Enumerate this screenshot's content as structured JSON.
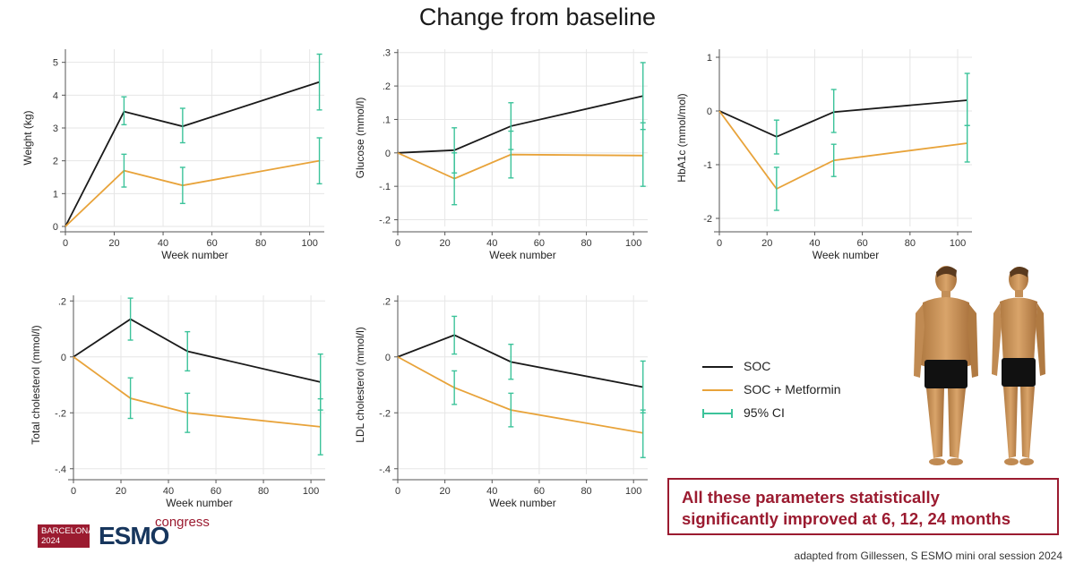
{
  "slide": {
    "title": "Change from baseline",
    "callout_line1": "All these parameters statistically",
    "callout_line2": "significantly improved at 6, 12, 24 months",
    "source": "adapted from Gillessen, S ESMO mini oral session 2024",
    "logo_city_line1": "BARCELONA",
    "logo_city_line2": "2024",
    "logo_mark": "ESMO",
    "logo_congress": "congress"
  },
  "legend": [
    {
      "label": "SOC",
      "kind": "line",
      "color": "#1a1a1a"
    },
    {
      "label": "SOC + Metformin",
      "kind": "line",
      "color": "#e8a33a"
    },
    {
      "label": "95% CI",
      "kind": "ci",
      "color": "#3cc39a"
    }
  ],
  "colors": {
    "soc": "#1a1a1a",
    "metformin": "#e8a33a",
    "ci": "#3cc39a",
    "grid": "#e6e6e6",
    "axis": "#555555"
  },
  "chart_data": [
    {
      "type": "line",
      "ylabel": "Weight (kg)",
      "xlabel": "Week number",
      "x": [
        0,
        24,
        48,
        104
      ],
      "xlim": [
        0,
        106
      ],
      "ylim": [
        0,
        5.4
      ],
      "xticks": [
        0,
        20,
        40,
        60,
        80,
        100
      ],
      "xtick_labels": [
        "0",
        "20",
        "40",
        "60",
        "80",
        "100"
      ],
      "yticks": [
        0,
        1,
        2,
        3,
        4,
        5
      ],
      "ytick_labels": [
        "0",
        "1",
        "2",
        "3",
        "4",
        "5"
      ],
      "series": [
        {
          "name": "SOC",
          "values": [
            0,
            3.5,
            3.05,
            4.4
          ],
          "ci": [
            [
              0,
              0
            ],
            [
              3.1,
              3.95
            ],
            [
              2.55,
              3.6
            ],
            [
              3.55,
              5.25
            ]
          ]
        },
        {
          "name": "SOC + Metformin",
          "values": [
            0,
            1.7,
            1.25,
            2.0
          ],
          "ci": [
            [
              0,
              0
            ],
            [
              1.2,
              2.2
            ],
            [
              0.7,
              1.8
            ],
            [
              1.3,
              2.7
            ]
          ]
        }
      ]
    },
    {
      "type": "line",
      "ylabel": "Glucose (mmol/l)",
      "xlabel": "Week number",
      "x": [
        0,
        24,
        48,
        104
      ],
      "xlim": [
        0,
        106
      ],
      "ylim": [
        -0.22,
        0.31
      ],
      "xticks": [
        0,
        20,
        40,
        60,
        80,
        100
      ],
      "xtick_labels": [
        "0",
        "20",
        "40",
        "60",
        "80",
        "100"
      ],
      "yticks": [
        -0.2,
        -0.1,
        0,
        0.1,
        0.2,
        0.3
      ],
      "ytick_labels": [
        "-.2",
        "-.1",
        "0",
        ".1",
        ".2",
        ".3"
      ],
      "series": [
        {
          "name": "SOC",
          "values": [
            0,
            0.008,
            0.08,
            0.17
          ],
          "ci": [
            [
              0,
              0
            ],
            [
              -0.06,
              0.075
            ],
            [
              0.01,
              0.15
            ],
            [
              0.07,
              0.27
            ]
          ]
        },
        {
          "name": "SOC + Metformin",
          "values": [
            0,
            -0.077,
            -0.005,
            -0.008
          ],
          "ci": [
            [
              0,
              0
            ],
            [
              -0.155,
              0.0
            ],
            [
              -0.075,
              0.065
            ],
            [
              -0.1,
              0.09
            ]
          ]
        }
      ]
    },
    {
      "type": "line",
      "ylabel": "HbA1c (mmol/mol)",
      "xlabel": "Week number",
      "x": [
        0,
        24,
        48,
        104
      ],
      "xlim": [
        0,
        106
      ],
      "ylim": [
        -2.15,
        1.15
      ],
      "xticks": [
        0,
        20,
        40,
        60,
        80,
        100
      ],
      "xtick_labels": [
        "0",
        "20",
        "40",
        "60",
        "80",
        "100"
      ],
      "yticks": [
        -2,
        -1,
        0,
        1
      ],
      "ytick_labels": [
        "-2",
        "-1",
        "0",
        "1"
      ],
      "series": [
        {
          "name": "SOC",
          "values": [
            0,
            -0.48,
            -0.02,
            0.2
          ],
          "ci": [
            [
              0,
              0
            ],
            [
              -0.8,
              -0.17
            ],
            [
              -0.4,
              0.4
            ],
            [
              -0.27,
              0.7
            ]
          ]
        },
        {
          "name": "SOC + Metformin",
          "values": [
            0,
            -1.45,
            -0.92,
            -0.6
          ],
          "ci": [
            [
              0,
              0
            ],
            [
              -1.85,
              -1.05
            ],
            [
              -1.22,
              -0.62
            ],
            [
              -0.95,
              -0.27
            ]
          ]
        }
      ]
    },
    {
      "type": "line",
      "ylabel": "Total cholesterol (mmol/l)",
      "xlabel": "Week number",
      "x": [
        0,
        24,
        48,
        104
      ],
      "xlim": [
        0,
        106
      ],
      "ylim": [
        -0.42,
        0.22
      ],
      "xticks": [
        0,
        20,
        40,
        60,
        80,
        100
      ],
      "xtick_labels": [
        "0",
        "20",
        "40",
        "60",
        "80",
        "100"
      ],
      "yticks": [
        -0.4,
        -0.2,
        0,
        0.2
      ],
      "ytick_labels": [
        "-.4",
        "-.2",
        "0",
        ".2"
      ],
      "series": [
        {
          "name": "SOC",
          "values": [
            0,
            0.135,
            0.02,
            -0.09
          ],
          "ci": [
            [
              0,
              0
            ],
            [
              0.06,
              0.21
            ],
            [
              -0.05,
              0.09
            ],
            [
              -0.19,
              0.01
            ]
          ]
        },
        {
          "name": "SOC + Metformin",
          "values": [
            0,
            -0.148,
            -0.2,
            -0.25
          ],
          "ci": [
            [
              0,
              0
            ],
            [
              -0.22,
              -0.075
            ],
            [
              -0.27,
              -0.13
            ],
            [
              -0.35,
              -0.15
            ]
          ]
        }
      ]
    },
    {
      "type": "line",
      "ylabel": "LDL cholesterol (mmol/l)",
      "xlabel": "Week number",
      "x": [
        0,
        24,
        48,
        104
      ],
      "xlim": [
        0,
        106
      ],
      "ylim": [
        -0.42,
        0.22
      ],
      "xticks": [
        0,
        20,
        40,
        60,
        80,
        100
      ],
      "xtick_labels": [
        "0",
        "20",
        "40",
        "60",
        "80",
        "100"
      ],
      "yticks": [
        -0.4,
        -0.2,
        0,
        0.2
      ],
      "ytick_labels": [
        "-.4",
        "-.2",
        "0",
        ".2"
      ],
      "series": [
        {
          "name": "SOC",
          "values": [
            0,
            0.078,
            -0.018,
            -0.108
          ],
          "ci": [
            [
              0,
              0
            ],
            [
              0.01,
              0.145
            ],
            [
              -0.08,
              0.045
            ],
            [
              -0.2,
              -0.015
            ]
          ]
        },
        {
          "name": "SOC + Metformin",
          "values": [
            0,
            -0.11,
            -0.19,
            -0.272
          ],
          "ci": [
            [
              0,
              0
            ],
            [
              -0.17,
              -0.05
            ],
            [
              -0.25,
              -0.13
            ],
            [
              -0.36,
              -0.19
            ]
          ]
        }
      ]
    }
  ]
}
